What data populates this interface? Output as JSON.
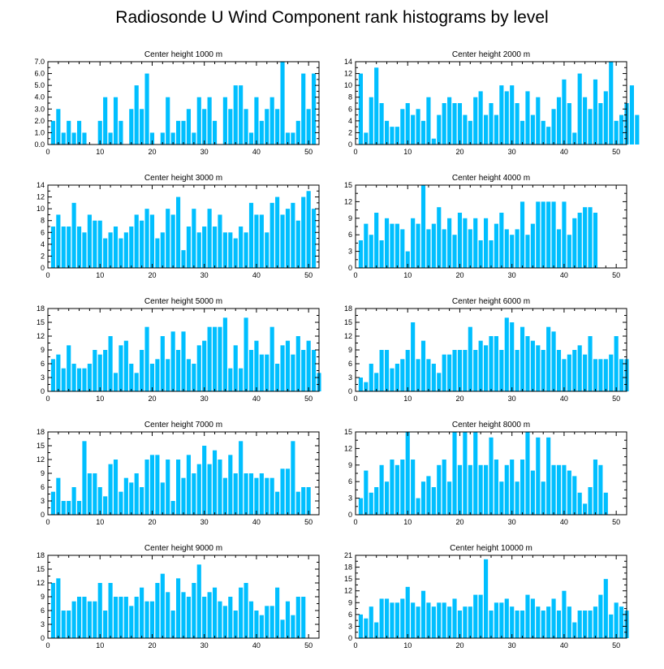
{
  "title": "Radiosonde U Wind Component rank histograms by level",
  "colors": {
    "bar": "#00bfff",
    "axis": "#000000"
  },
  "chart_data": [
    {
      "type": "bar",
      "title": "Center height 1000 m",
      "xlim": [
        0,
        52
      ],
      "ylim": [
        0,
        7
      ],
      "ytick_step": 1,
      "ytick_decimals": 1,
      "values": [
        2,
        3,
        1,
        2,
        1,
        2,
        1,
        0,
        0,
        2,
        4,
        1,
        4,
        2,
        0,
        3,
        5,
        3,
        6,
        1,
        0,
        1,
        4,
        1,
        2,
        2,
        3,
        1,
        4,
        3,
        4,
        2,
        0,
        4,
        3,
        5,
        5,
        3,
        1,
        4,
        2,
        3,
        4,
        3,
        7,
        1,
        1,
        2,
        6,
        3,
        6
      ]
    },
    {
      "type": "bar",
      "title": "Center height 2000 m",
      "xlim": [
        0,
        52
      ],
      "ylim": [
        0,
        14
      ],
      "ytick_step": 2,
      "ytick_decimals": 0,
      "values": [
        12,
        2,
        8,
        13,
        7,
        4,
        3,
        3,
        6,
        7,
        5,
        6,
        4,
        8,
        1,
        5,
        7,
        8,
        7,
        7,
        5,
        4,
        8,
        9,
        5,
        7,
        5,
        10,
        9,
        10,
        7,
        4,
        9,
        5,
        8,
        4,
        3,
        6,
        8,
        11,
        7,
        2,
        12,
        8,
        6,
        11,
        7,
        9,
        14,
        4,
        5,
        7,
        10,
        5
      ]
    },
    {
      "type": "bar",
      "title": "Center height 3000 m",
      "xlim": [
        0,
        52
      ],
      "ylim": [
        0,
        14
      ],
      "ytick_step": 2,
      "ytick_decimals": 0,
      "values": [
        7,
        9,
        7,
        7,
        11,
        7,
        6,
        9,
        8,
        8,
        5,
        6,
        7,
        5,
        6,
        7,
        9,
        8,
        10,
        9,
        5,
        6,
        10,
        9,
        12,
        3,
        7,
        10,
        6,
        7,
        10,
        7,
        9,
        6,
        6,
        5,
        7,
        6,
        11,
        9,
        9,
        6,
        11,
        12,
        9,
        10,
        11,
        8,
        12,
        13,
        10
      ]
    },
    {
      "type": "bar",
      "title": "Center height 4000 m",
      "xlim": [
        0,
        52
      ],
      "ylim": [
        0,
        15
      ],
      "ytick_step": 3,
      "ytick_decimals": 0,
      "values": [
        5,
        8,
        6,
        10,
        5,
        9,
        8,
        8,
        7,
        3,
        9,
        8,
        15,
        7,
        8,
        11,
        7,
        9,
        6,
        10,
        9,
        7,
        9,
        5,
        9,
        5,
        8,
        10,
        7,
        6,
        7,
        12,
        6,
        8,
        12,
        12,
        12,
        12,
        7,
        12,
        6,
        9,
        10,
        11,
        11,
        10
      ]
    },
    {
      "type": "bar",
      "title": "Center height 5000 m",
      "xlim": [
        0,
        52
      ],
      "ylim": [
        0,
        18
      ],
      "ytick_step": 3,
      "ytick_decimals": 0,
      "values": [
        7,
        8,
        5,
        10,
        6,
        5,
        5,
        6,
        9,
        8,
        9,
        12,
        4,
        10,
        11,
        6,
        4,
        9,
        14,
        6,
        7,
        12,
        7,
        13,
        9,
        13,
        7,
        6,
        10,
        11,
        14,
        14,
        14,
        16,
        5,
        10,
        5,
        16,
        9,
        11,
        8,
        8,
        14,
        6,
        10,
        11,
        8,
        12,
        9,
        11,
        9,
        4
      ]
    },
    {
      "type": "bar",
      "title": "Center height 6000 m",
      "xlim": [
        0,
        52
      ],
      "ylim": [
        0,
        18
      ],
      "ytick_step": 3,
      "ytick_decimals": 0,
      "values": [
        3,
        2,
        6,
        4,
        9,
        9,
        5,
        6,
        7,
        9,
        15,
        7,
        11,
        7,
        6,
        4,
        8,
        8,
        9,
        9,
        9,
        14,
        9,
        11,
        10,
        12,
        12,
        9,
        16,
        15,
        9,
        14,
        12,
        11,
        10,
        9,
        14,
        13,
        9,
        7,
        8,
        9,
        10,
        8,
        12,
        7,
        7,
        7,
        8,
        12,
        7,
        7
      ]
    },
    {
      "type": "bar",
      "title": "Center height 7000 m",
      "xlim": [
        0,
        52
      ],
      "ylim": [
        0,
        18
      ],
      "ytick_step": 3,
      "ytick_decimals": 0,
      "values": [
        5,
        8,
        3,
        3,
        6,
        3,
        16,
        9,
        9,
        6,
        4,
        11,
        12,
        5,
        8,
        7,
        9,
        6,
        12,
        13,
        13,
        7,
        12,
        3,
        12,
        8,
        13,
        9,
        11,
        15,
        11,
        14,
        12,
        8,
        13,
        9,
        16,
        9,
        9,
        8,
        9,
        8,
        8,
        5,
        10,
        10,
        16,
        5,
        6,
        6
      ]
    },
    {
      "type": "bar",
      "title": "Center height 8000 m",
      "xlim": [
        0,
        52
      ],
      "ylim": [
        0,
        15
      ],
      "ytick_step": 3,
      "ytick_decimals": 0,
      "values": [
        3,
        8,
        4,
        5,
        9,
        6,
        10,
        9,
        10,
        15,
        10,
        3,
        6,
        7,
        5,
        9,
        10,
        6,
        15,
        9,
        15,
        9,
        15,
        9,
        9,
        14,
        10,
        6,
        9,
        10,
        6,
        10,
        15,
        8,
        14,
        6,
        14,
        9,
        9,
        9,
        8,
        7,
        4,
        2,
        5,
        10,
        9,
        4
      ]
    },
    {
      "type": "bar",
      "title": "Center height 9000 m",
      "xlim": [
        0,
        52
      ],
      "ylim": [
        0,
        18
      ],
      "ytick_step": 3,
      "ytick_decimals": 0,
      "values": [
        12,
        13,
        6,
        6,
        8,
        9,
        9,
        8,
        8,
        12,
        6,
        12,
        9,
        9,
        9,
        7,
        9,
        11,
        8,
        8,
        12,
        14,
        10,
        6,
        13,
        10,
        9,
        12,
        16,
        9,
        10,
        11,
        8,
        7,
        9,
        6,
        11,
        12,
        8,
        6,
        5,
        7,
        7,
        11,
        4,
        8,
        5,
        9,
        9
      ]
    },
    {
      "type": "bar",
      "title": "Center height 10000 m",
      "xlim": [
        0,
        52
      ],
      "ylim": [
        0,
        21
      ],
      "ytick_step": 3,
      "ytick_decimals": 0,
      "values": [
        6,
        5,
        8,
        4,
        10,
        10,
        9,
        9,
        10,
        13,
        9,
        8,
        12,
        9,
        8,
        9,
        9,
        8,
        10,
        7,
        8,
        8,
        11,
        11,
        20,
        7,
        9,
        9,
        10,
        8,
        7,
        7,
        11,
        10,
        8,
        7,
        8,
        10,
        7,
        12,
        8,
        4,
        7,
        7,
        7,
        8,
        11,
        15,
        6,
        9,
        8,
        7
      ]
    }
  ]
}
